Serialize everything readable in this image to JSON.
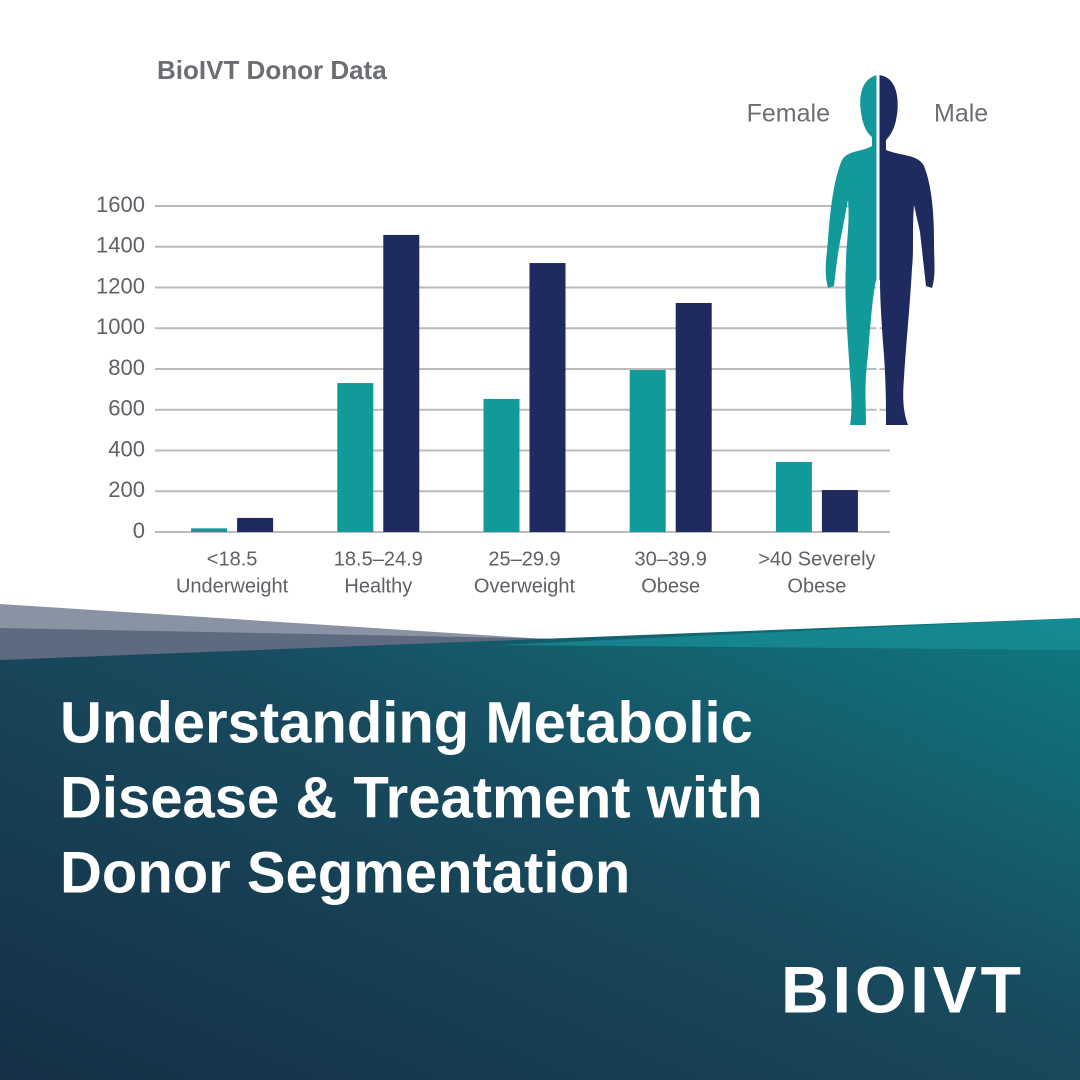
{
  "chart_data": {
    "type": "bar",
    "title": "BioIVT Donor Data",
    "categories": [
      [
        "<18.5",
        "Underweight"
      ],
      [
        "18.5–24.9",
        "Healthy"
      ],
      [
        "25–29.9",
        "Overweight"
      ],
      [
        "30–39.9",
        "Obese"
      ],
      [
        ">40 Severely",
        "Obese"
      ]
    ],
    "series": [
      {
        "name": "Female",
        "color": "#12999a",
        "values": [
          18,
          731,
          653,
          795,
          344
        ]
      },
      {
        "name": "Male",
        "color": "#1f2a5e",
        "values": [
          69,
          1458,
          1320,
          1124,
          206
        ]
      }
    ],
    "ylim": [
      0,
      1600
    ],
    "yticks": [
      0,
      200,
      400,
      600,
      800,
      1000,
      1200,
      1400,
      1600
    ],
    "grid": true
  },
  "headline": [
    "Understanding Metabolic",
    "Disease & Treatment with",
    "Donor Segmentation"
  ],
  "logo": "BIOIVT"
}
